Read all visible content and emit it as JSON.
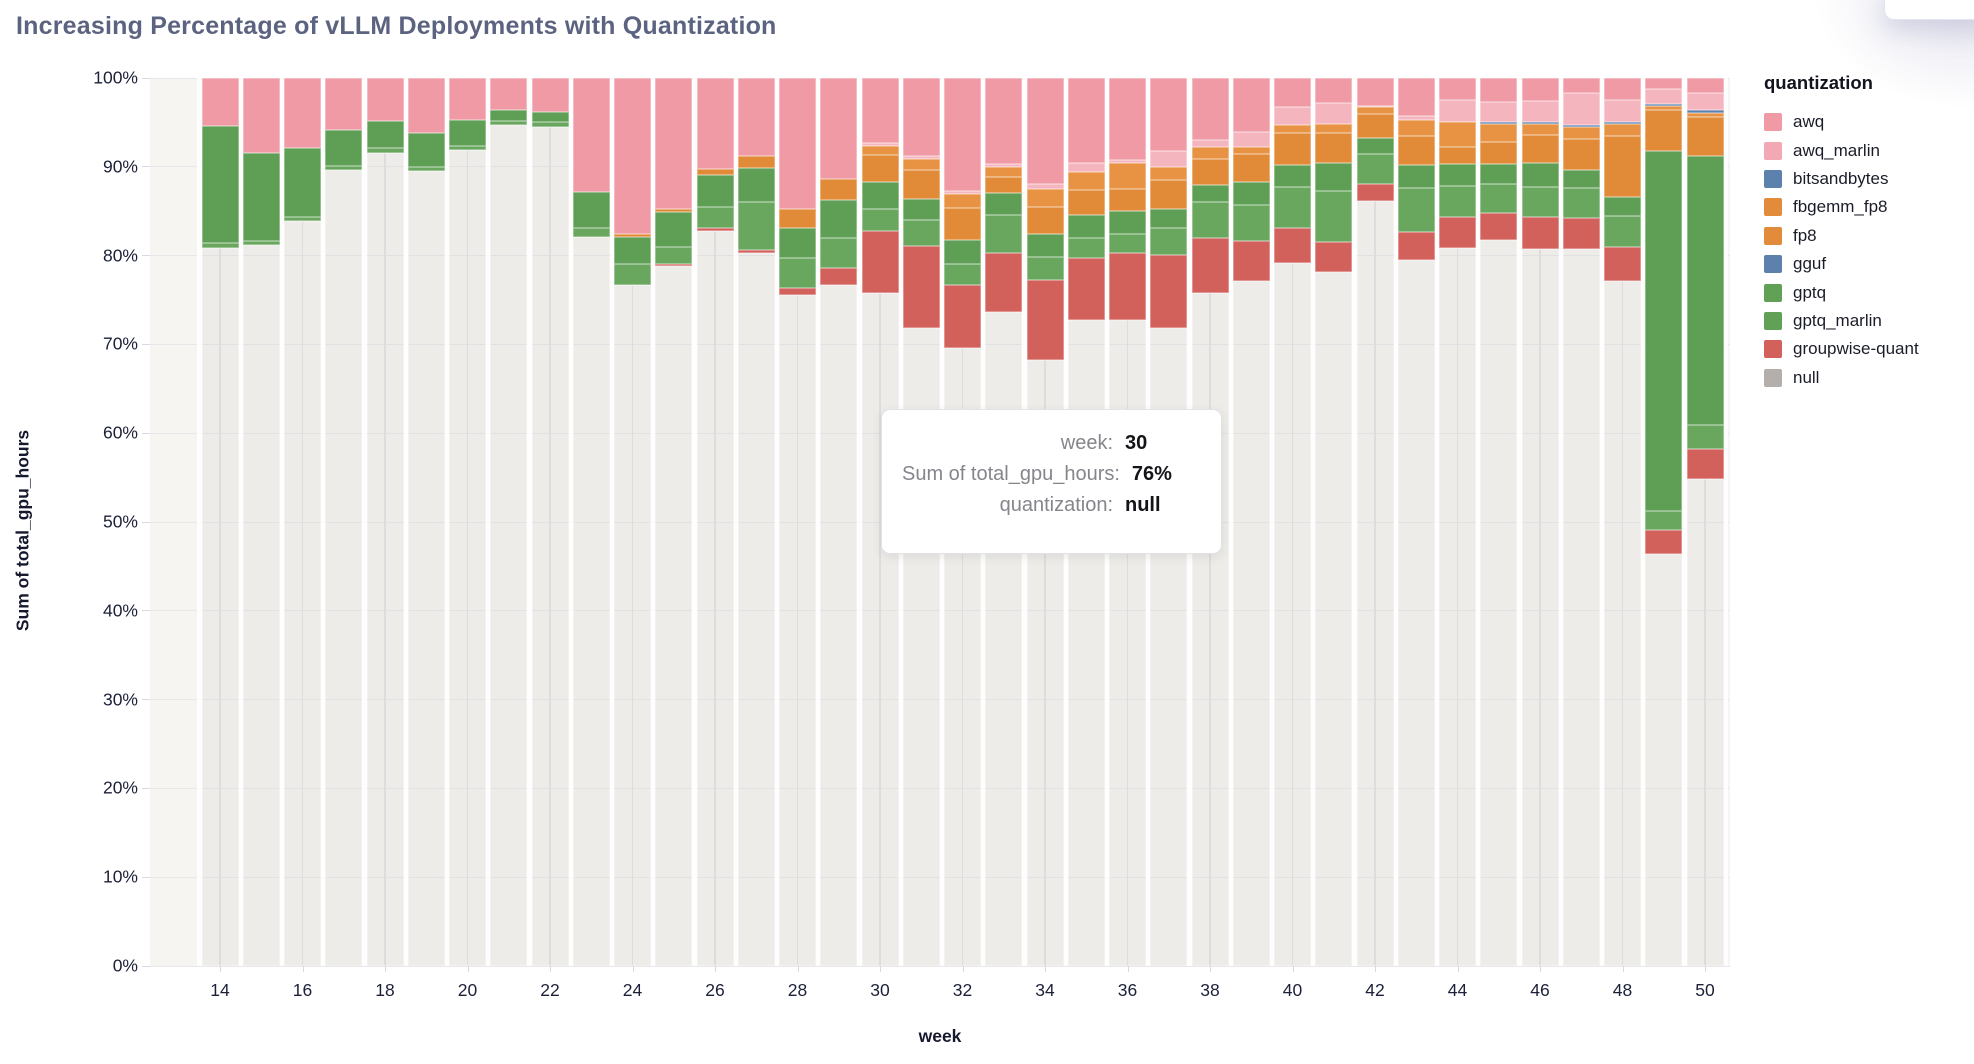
{
  "page": {
    "title": "Increasing Percentage of vLLM Deployments with Quantization"
  },
  "chart_data": {
    "type": "bar",
    "stacked": true,
    "normalized": "percent",
    "title": "Increasing Percentage of vLLM Deployments with Quantization",
    "xlabel": "week",
    "ylabel": "Sum of total_gpu_hours",
    "ylim": [
      0,
      100
    ],
    "y_tick_labels": [
      "0%",
      "10%",
      "20%",
      "30%",
      "40%",
      "50%",
      "60%",
      "70%",
      "80%",
      "90%",
      "100%"
    ],
    "x_tick_labels": [
      14,
      16,
      18,
      20,
      22,
      24,
      26,
      28,
      30,
      32,
      34,
      36,
      38,
      40,
      42,
      44,
      46,
      48,
      50
    ],
    "grid": true,
    "legend_position": "right",
    "legend_title": "quantization",
    "stack_order_top_to_bottom": [
      "awq",
      "awq_marlin",
      "bitsandbytes",
      "fbgemm_fp8",
      "fp8",
      "gguf",
      "gptq",
      "gptq_marlin",
      "groupwise-quant",
      "null"
    ],
    "categories": [
      14,
      15,
      16,
      17,
      18,
      19,
      20,
      21,
      22,
      23,
      24,
      25,
      26,
      27,
      28,
      29,
      30,
      31,
      32,
      33,
      34,
      35,
      36,
      37,
      38,
      39,
      40,
      41,
      42,
      43,
      44,
      45,
      46,
      47,
      48,
      49,
      50
    ],
    "series": [
      {
        "name": "awq",
        "color": "#ef9aa4",
        "values": [
          5.4,
          8.4,
          7.9,
          5.8,
          4.8,
          6.2,
          4.7,
          3.6,
          3.8,
          12.8,
          17.6,
          14.8,
          10.2,
          8.8,
          14.7,
          11.4,
          7.3,
          8.8,
          12.7,
          9.7,
          11.9,
          9.6,
          9.2,
          8.2,
          7.0,
          6.1,
          3.3,
          2.8,
          3.2,
          4.3,
          2.5,
          2.7,
          2.6,
          1.7,
          2.5,
          1.2,
          1.7
        ]
      },
      {
        "name": "awq_marlin",
        "color": "#f4b5bf",
        "values": [
          0,
          0,
          0,
          0,
          0,
          0,
          0,
          0,
          0,
          0,
          0,
          0,
          0,
          0,
          0,
          0,
          0.4,
          0.3,
          0.4,
          0.3,
          0.6,
          1.0,
          0.4,
          1.8,
          0.8,
          1.7,
          2.0,
          2.4,
          0.1,
          0.4,
          2.5,
          2.3,
          2.4,
          3.6,
          2.5,
          1.7,
          1.9
        ]
      },
      {
        "name": "bitsandbytes",
        "color": "#5d81ad",
        "values": [
          0,
          0,
          0,
          0,
          0,
          0,
          0,
          0,
          0,
          0,
          0,
          0,
          0,
          0,
          0,
          0,
          0,
          0,
          0,
          0,
          0,
          0,
          0,
          0,
          0,
          0,
          0,
          0,
          0,
          0,
          0,
          0.2,
          0.2,
          0.2,
          0.2,
          0.2,
          0.3
        ]
      },
      {
        "name": "fbgemm_fp8",
        "color": "#e79343",
        "values": [
          0,
          0,
          0,
          0,
          0,
          0,
          0,
          0,
          0,
          0,
          0,
          0,
          0,
          0,
          0,
          0,
          1.0,
          1.2,
          1.5,
          1.1,
          2.0,
          2.0,
          2.9,
          1.5,
          1.3,
          0.8,
          0.9,
          1.0,
          0.7,
          1.8,
          2.8,
          2.0,
          1.2,
          1.4,
          1.3,
          0.5,
          0.5
        ]
      },
      {
        "name": "fp8",
        "color": "#e18a38",
        "values": [
          0,
          0,
          0,
          0,
          0,
          0,
          0,
          0,
          0,
          0,
          0.3,
          0.3,
          0.7,
          1.3,
          2.2,
          2.3,
          3.0,
          3.3,
          3.6,
          1.9,
          3.1,
          2.8,
          2.5,
          3.2,
          3.0,
          3.1,
          3.6,
          3.4,
          2.8,
          3.3,
          1.9,
          2.5,
          3.2,
          3.5,
          6.9,
          4.6,
          4.4
        ]
      },
      {
        "name": "gguf",
        "color": "#5d81ad",
        "values": [
          0,
          0,
          0,
          0,
          0,
          0,
          0,
          0,
          0,
          0,
          0,
          0,
          0,
          0,
          0,
          0,
          0,
          0,
          0,
          0,
          0,
          0,
          0,
          0,
          0,
          0,
          0,
          0,
          0,
          0,
          0,
          0,
          0,
          0,
          0,
          0,
          0
        ]
      },
      {
        "name": "gptq",
        "color": "#5f9f55",
        "values": [
          13.2,
          9.9,
          7.7,
          4.1,
          3.1,
          3.8,
          2.9,
          1.2,
          1.2,
          4.1,
          3.1,
          3.9,
          3.6,
          3.9,
          3.4,
          4.3,
          3.0,
          2.4,
          2.8,
          2.4,
          2.6,
          2.6,
          2.6,
          2.2,
          1.9,
          2.6,
          2.5,
          3.1,
          1.8,
          2.6,
          2.5,
          2.2,
          2.7,
          2.0,
          2.1,
          40.6,
          30.3
        ]
      },
      {
        "name": "gptq_marlin",
        "color": "#69a75f",
        "values": [
          0.5,
          0.5,
          0.5,
          0.5,
          0.5,
          0.5,
          0.5,
          0.5,
          0.5,
          1.0,
          2.3,
          1.9,
          2.4,
          5.4,
          3.3,
          3.4,
          2.5,
          2.9,
          2.3,
          4.3,
          2.5,
          2.3,
          2.1,
          3.0,
          4.0,
          4.0,
          4.6,
          5.8,
          3.3,
          4.9,
          3.5,
          3.3,
          3.4,
          3.4,
          3.5,
          2.1,
          2.7
        ]
      },
      {
        "name": "groupwise-quant",
        "color": "#d2605b",
        "values": [
          0,
          0,
          0,
          0,
          0,
          0,
          0,
          0,
          0,
          0,
          0,
          0.3,
          0.3,
          0.3,
          0.8,
          1.9,
          7.0,
          9.3,
          7.1,
          6.6,
          9.0,
          7.0,
          7.5,
          8.3,
          6.2,
          4.6,
          3.9,
          3.3,
          2.0,
          3.2,
          3.4,
          3.0,
          3.5,
          3.5,
          3.9,
          2.7,
          3.3
        ]
      },
      {
        "name": "null",
        "color": "rgba(177,171,167,0.12)",
        "values": [
          80.9,
          81.2,
          83.9,
          89.6,
          91.6,
          89.5,
          91.9,
          94.7,
          94.5,
          82.1,
          76.7,
          78.8,
          82.8,
          80.3,
          75.6,
          76.7,
          75.8,
          71.8,
          69.6,
          73.7,
          68.3,
          72.7,
          72.8,
          71.8,
          75.8,
          77.1,
          79.2,
          78.2,
          86.1,
          79.5,
          80.9,
          81.8,
          80.8,
          80.7,
          77.1,
          46.4,
          54.9
        ]
      }
    ]
  },
  "legend": {
    "title": "quantization",
    "items": [
      {
        "label": "awq",
        "color": "#ef9aa4"
      },
      {
        "label": "awq_marlin",
        "color": "#f2a9b4"
      },
      {
        "label": "bitsandbytes",
        "color": "#5d81ad"
      },
      {
        "label": "fbgemm_fp8",
        "color": "#e28c3b"
      },
      {
        "label": "fp8",
        "color": "#e28c3b"
      },
      {
        "label": "gguf",
        "color": "#5d81ad"
      },
      {
        "label": "gptq",
        "color": "#61a156"
      },
      {
        "label": "gptq_marlin",
        "color": "#61a156"
      },
      {
        "label": "groupwise-quant",
        "color": "#d2605b"
      },
      {
        "label": "null",
        "color": "#b4afab"
      }
    ]
  },
  "tooltip": {
    "rows": [
      {
        "label": "week:",
        "value": "30"
      },
      {
        "label": "Sum of total_gpu_hours:",
        "value": "76%"
      },
      {
        "label": "quantization:",
        "value": "null"
      }
    ]
  },
  "axes": {
    "x_title": "week",
    "y_title": "Sum of total_gpu_hours"
  }
}
